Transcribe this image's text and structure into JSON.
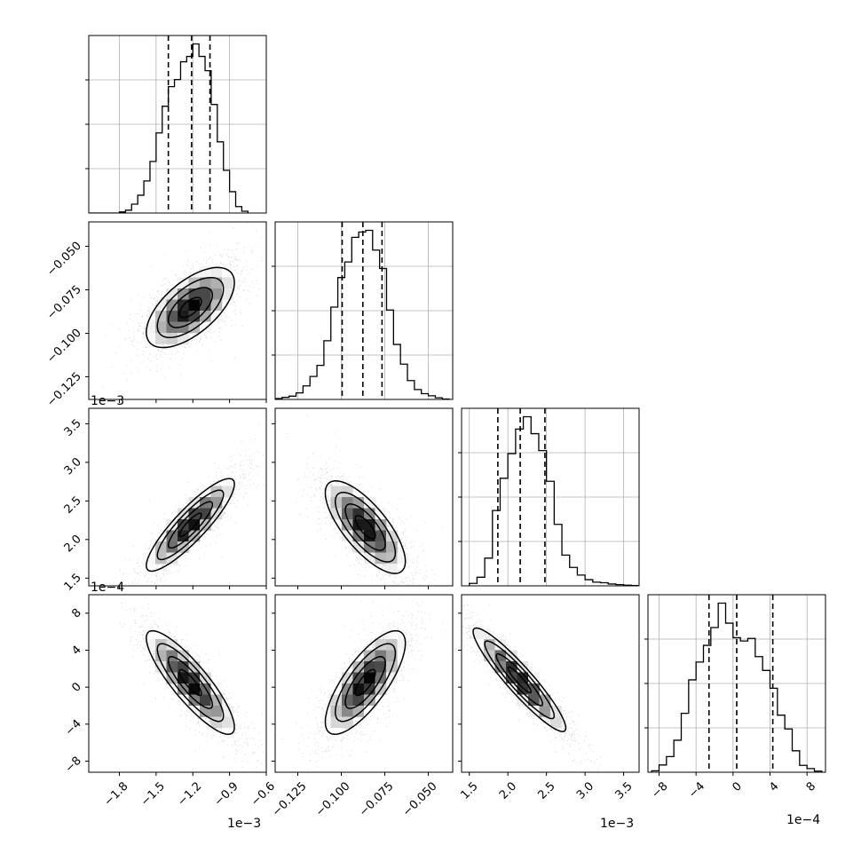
{
  "chart_data": {
    "type": "corner",
    "parameters": [
      {
        "range": [
          -0.00205,
          -0.0006
        ],
        "ticks": [
          -0.0018,
          -0.0015,
          -0.0012,
          -0.0009,
          -0.0006
        ],
        "tick_labels": [
          "−1.8",
          "−1.5",
          "−1.2",
          "−0.9",
          "−0.6"
        ],
        "offset_text": "1e−3",
        "quantiles": [
          -0.0014,
          -0.00121,
          -0.00106
        ],
        "hist_bins": [
          -0.00205,
          -0.002,
          -0.00195,
          -0.0019,
          -0.00185,
          -0.0018,
          -0.00175,
          -0.0017,
          -0.00165,
          -0.0016,
          -0.00155,
          -0.0015,
          -0.00145,
          -0.0014,
          -0.00135,
          -0.0013,
          -0.00125,
          -0.0012,
          -0.00115,
          -0.0011,
          -0.00105,
          -0.001,
          -0.00095,
          -0.0009,
          -0.00085,
          -0.0008,
          -0.00075
        ],
        "hist_counts": [
          0,
          0,
          0,
          0,
          0,
          3,
          8,
          25,
          50,
          90,
          145,
          225,
          300,
          355,
          375,
          425,
          440,
          475,
          440,
          400,
          305,
          200,
          120,
          60,
          18,
          5
        ]
      },
      {
        "range": [
          -0.138,
          -0.036
        ],
        "ticks": [
          -0.125,
          -0.1,
          -0.075,
          -0.05
        ],
        "tick_labels": [
          "−0.125",
          "−0.100",
          "−0.075",
          "−0.050"
        ],
        "quantiles": [
          -0.0995,
          -0.0876,
          -0.0766
        ],
        "hist_bins": [
          -0.138,
          -0.134,
          -0.13,
          -0.126,
          -0.122,
          -0.118,
          -0.114,
          -0.11,
          -0.106,
          -0.102,
          -0.098,
          -0.094,
          -0.09,
          -0.086,
          -0.082,
          -0.078,
          -0.074,
          -0.07,
          -0.066,
          -0.062,
          -0.058,
          -0.054,
          -0.05,
          -0.046,
          -0.042,
          -0.038
        ],
        "hist_counts": [
          2,
          5,
          8,
          16,
          33,
          56,
          83,
          143,
          225,
          297,
          335,
          395,
          408,
          412,
          364,
          319,
          218,
          134,
          86,
          46,
          24,
          14,
          9,
          4,
          1
        ]
      },
      {
        "range": [
          0.0014,
          0.0037
        ],
        "ticks": [
          0.0015,
          0.002,
          0.0025,
          0.003,
          0.0035
        ],
        "tick_labels": [
          "1.5",
          "2.0",
          "2.5",
          "3.0",
          "3.5"
        ],
        "offset_text": "1e−3",
        "quantiles": [
          0.00187,
          0.00216,
          0.00248
        ],
        "hist_bins": [
          0.0015,
          0.0016,
          0.0017,
          0.0018,
          0.0019,
          0.002,
          0.0021,
          0.0022,
          0.0023,
          0.0024,
          0.0025,
          0.0026,
          0.0027,
          0.0028,
          0.0029,
          0.003,
          0.0031,
          0.0032,
          0.0033,
          0.0034,
          0.0035,
          0.0036,
          0.0037
        ],
        "hist_counts": [
          8,
          28,
          90,
          245,
          350,
          430,
          510,
          550,
          495,
          440,
          340,
          200,
          100,
          60,
          35,
          20,
          12,
          10,
          6,
          4,
          2,
          1
        ]
      },
      {
        "range": [
          -0.00092,
          0.001
        ],
        "ticks": [
          -0.0008,
          -0.0004,
          0.0,
          0.0004,
          0.0008
        ],
        "tick_labels": [
          "−8",
          "−4",
          "0",
          "4",
          "8"
        ],
        "offset_text": "1e−4",
        "quantiles": [
          -0.00026,
          4e-05,
          0.00043
        ],
        "hist_bins": [
          -0.00088,
          -0.0008,
          -0.00072,
          -0.00064,
          -0.00056,
          -0.00048,
          -0.0004,
          -0.00032,
          -0.00024,
          -0.00016,
          -8e-05,
          0.0,
          8e-05,
          0.00016,
          0.00024,
          0.00032,
          0.0004,
          0.00048,
          0.00056,
          0.00064,
          0.00072,
          0.0008,
          0.00088,
          0.00096
        ],
        "hist_counts": [
          4,
          20,
          43,
          88,
          162,
          254,
          303,
          349,
          398,
          465,
          410,
          370,
          361,
          368,
          318,
          280,
          231,
          157,
          119,
          59,
          19,
          10,
          3
        ]
      }
    ],
    "pairs": [
      {
        "x": 0,
        "y": 1,
        "center": [
          -0.00122,
          -0.0852
        ],
        "scale": [
          0.00018,
          0.0115
        ],
        "rho": 0.62,
        "levels_sigma": [
          0.5,
          1.0,
          1.5,
          2.0
        ]
      },
      {
        "x": 0,
        "y": 2,
        "center": [
          -0.00122,
          0.00219
        ],
        "scale": [
          0.00018,
          0.0003
        ],
        "rho": 0.88,
        "levels_sigma": [
          0.5,
          1.0,
          1.5,
          2.0
        ]
      },
      {
        "x": 1,
        "y": 2,
        "center": [
          -0.0862,
          0.00216
        ],
        "scale": [
          0.0115,
          0.0003
        ],
        "rho": -0.74,
        "levels_sigma": [
          0.5,
          1.0,
          1.5,
          2.0
        ]
      },
      {
        "x": 0,
        "y": 3,
        "center": [
          -0.00122,
          5e-05
        ],
        "scale": [
          0.00018,
          0.00028
        ],
        "rho": -0.86,
        "levels_sigma": [
          0.5,
          1.0,
          1.5,
          2.0
        ]
      },
      {
        "x": 1,
        "y": 3,
        "center": [
          -0.0862,
          5e-05
        ],
        "scale": [
          0.0115,
          0.00028
        ],
        "rho": 0.76,
        "levels_sigma": [
          0.5,
          1.0,
          1.5,
          2.0
        ]
      },
      {
        "x": 2,
        "y": 3,
        "center": [
          0.00215,
          8e-05
        ],
        "scale": [
          0.0003,
          0.00028
        ],
        "rho": -0.93,
        "levels_sigma": [
          0.5,
          1.0,
          1.5,
          2.0
        ]
      }
    ],
    "grid": true,
    "colors": {
      "hist": "#000000",
      "density_dark": "#000000",
      "density_light": "#ffffff",
      "points": "#b0b0b0",
      "grid": "#b0b0b0"
    }
  }
}
